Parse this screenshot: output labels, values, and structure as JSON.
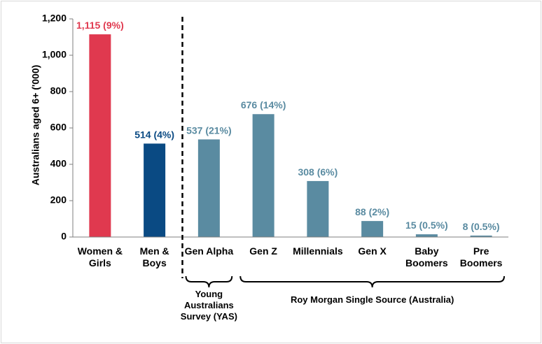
{
  "chart_data": {
    "type": "bar",
    "title": "",
    "xlabel": "",
    "ylabel": "Australians aged 6+ ('000)",
    "ylim": [
      0,
      1200
    ],
    "yticks": [
      "0",
      "200",
      "400",
      "600",
      "800",
      "1,000",
      "1,200"
    ],
    "ytick_values": [
      0,
      200,
      400,
      600,
      800,
      1000,
      1200
    ],
    "grid": false,
    "legend": "none",
    "categories": [
      [
        "Women &",
        "Girls"
      ],
      [
        "Men &",
        "Boys"
      ],
      [
        "Gen Alpha"
      ],
      [
        "Gen Z"
      ],
      [
        "Millennials"
      ],
      [
        "Gen X"
      ],
      [
        "Baby",
        "Boomers"
      ],
      [
        "Pre",
        "Boomers"
      ]
    ],
    "values": [
      1115,
      514,
      537,
      676,
      308,
      88,
      15,
      8
    ],
    "data_labels": [
      "1,115 (9%)",
      "514 (4%)",
      "537 (21%)",
      "676 (14%)",
      "308 (6%)",
      "88 (2%)",
      "15 (0.5%)",
      "8 (0.5%)"
    ],
    "colors": [
      "#e0394f",
      "#0a4a83",
      "#5a8ba1",
      "#5a8ba1",
      "#5a8ba1",
      "#5a8ba1",
      "#5a8ba1",
      "#5a8ba1"
    ],
    "label_colors": [
      "#e0394f",
      "#0a4a83",
      "#5a8ba1",
      "#5a8ba1",
      "#5a8ba1",
      "#5a8ba1",
      "#5a8ba1",
      "#5a8ba1"
    ],
    "annotations": {
      "divider": "dashed vertical line between Men & Boys and Gen Alpha",
      "groups": [
        {
          "label": [
            "Young",
            "Australians",
            "Survey (YAS)"
          ],
          "from": 2,
          "to": 2
        },
        {
          "label": [
            "Roy Morgan Single Source (Australia)"
          ],
          "from": 3,
          "to": 7
        }
      ]
    }
  }
}
